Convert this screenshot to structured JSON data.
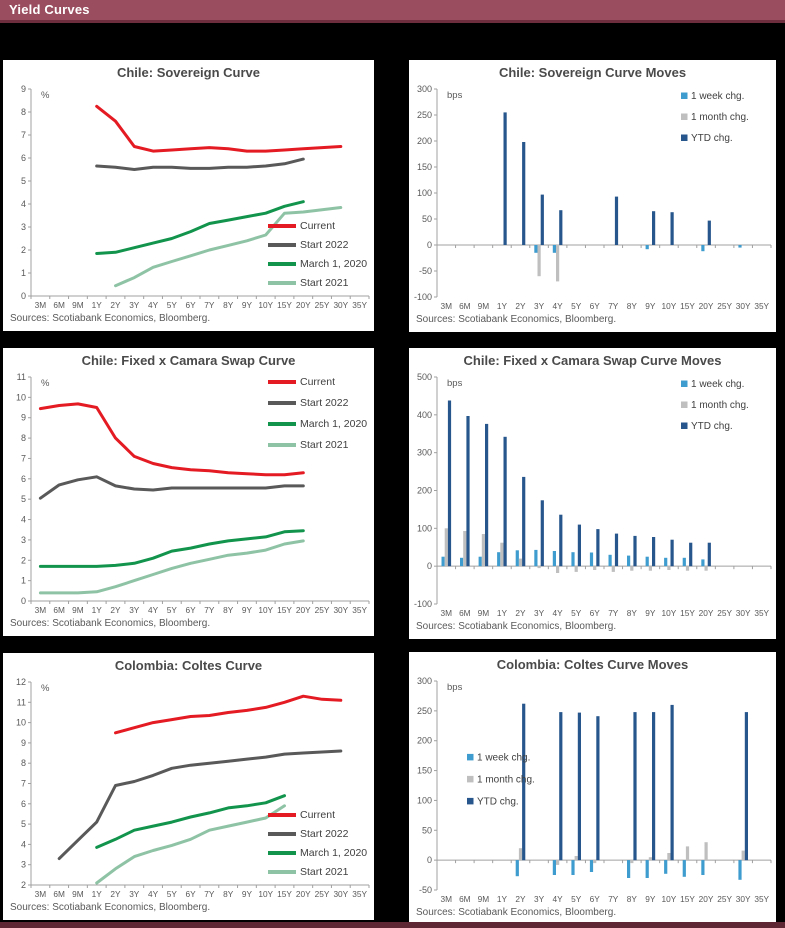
{
  "header": {
    "title": "Yield Curves"
  },
  "colors": {
    "header_bg": "#9a4d5e",
    "header_border": "#6f2e3e",
    "page_bg": "#000000",
    "panel_bg": "#ffffff",
    "axis": "#a0a0a0",
    "tick_text": "#595959",
    "legend_text": "#404040",
    "current_red": "#e41b23",
    "start2022_gray": "#595959",
    "march2020_green": "#12944d",
    "start2021_lightgreen": "#8fc3a5",
    "week_blue": "#3f9cce",
    "month_gray": "#bfbfbf",
    "ytd_navy": "#26568c"
  },
  "chart_data": [
    {
      "type": "line",
      "title": "Chile: Sovereign Curve",
      "unit": "%",
      "ylim": [
        0,
        9
      ],
      "ytick": 1,
      "legend_position": "bottom-right",
      "source": "Sources: Scotiabank Economics, Bloomberg.",
      "categories": [
        "3M",
        "6M",
        "9M",
        "1Y",
        "2Y",
        "3Y",
        "4Y",
        "5Y",
        "6Y",
        "7Y",
        "8Y",
        "9Y",
        "10Y",
        "15Y",
        "20Y",
        "25Y",
        "30Y",
        "35Y"
      ],
      "series": [
        {
          "name": "Current",
          "color": "#e41b23",
          "values": [
            null,
            null,
            null,
            8.25,
            7.6,
            6.5,
            6.3,
            6.35,
            6.4,
            6.45,
            6.4,
            6.3,
            6.3,
            6.35,
            6.4,
            6.45,
            6.5,
            null
          ]
        },
        {
          "name": "Start 2022",
          "color": "#595959",
          "values": [
            null,
            null,
            null,
            5.65,
            5.6,
            5.5,
            5.6,
            5.6,
            5.55,
            5.55,
            5.6,
            5.6,
            5.65,
            5.75,
            5.95,
            null,
            null,
            null
          ]
        },
        {
          "name": "March 1, 2020",
          "color": "#12944d",
          "values": [
            null,
            null,
            null,
            1.85,
            1.9,
            2.1,
            2.3,
            2.5,
            2.8,
            3.15,
            3.3,
            3.45,
            3.6,
            3.9,
            4.1,
            null,
            null,
            null
          ]
        },
        {
          "name": "Start 2021",
          "color": "#8fc3a5",
          "values": [
            null,
            null,
            null,
            null,
            0.45,
            0.8,
            1.25,
            1.5,
            1.75,
            2.0,
            2.2,
            2.4,
            2.65,
            3.6,
            3.65,
            3.75,
            3.85,
            null
          ]
        }
      ]
    },
    {
      "type": "bar",
      "title": "Chile: Sovereign Curve Moves",
      "unit": "bps",
      "ylim": [
        -100,
        300
      ],
      "ytick": 50,
      "legend_position": "top-right",
      "source": "Sources: Scotiabank Economics, Bloomberg.",
      "categories": [
        "3M",
        "6M",
        "9M",
        "1Y",
        "2Y",
        "3Y",
        "4Y",
        "5Y",
        "6Y",
        "7Y",
        "8Y",
        "9Y",
        "10Y",
        "15Y",
        "20Y",
        "25Y",
        "30Y",
        "35Y"
      ],
      "series": [
        {
          "name": "1 week chg.",
          "color": "#3f9cce",
          "values": [
            0,
            0,
            0,
            0,
            0,
            -15,
            -15,
            0,
            0,
            0,
            0,
            -8,
            0,
            0,
            -12,
            0,
            -5,
            0
          ]
        },
        {
          "name": "1 month chg.",
          "color": "#bfbfbf",
          "values": [
            0,
            0,
            0,
            0,
            0,
            -60,
            -70,
            0,
            0,
            0,
            0,
            0,
            0,
            0,
            0,
            0,
            0,
            0
          ]
        },
        {
          "name": "YTD chg.",
          "color": "#26568c",
          "values": [
            0,
            0,
            0,
            255,
            198,
            97,
            67,
            0,
            0,
            93,
            0,
            65,
            63,
            0,
            47,
            0,
            0,
            0
          ]
        }
      ]
    },
    {
      "type": "line",
      "title": "Chile: Fixed x Camara Swap Curve",
      "unit": "%",
      "ylim": [
        0,
        11
      ],
      "ytick": 1,
      "legend_position": "top-right",
      "source": "Sources: Scotiabank Economics, Bloomberg.",
      "categories": [
        "3M",
        "6M",
        "9M",
        "1Y",
        "2Y",
        "3Y",
        "4Y",
        "5Y",
        "6Y",
        "7Y",
        "8Y",
        "9Y",
        "10Y",
        "15Y",
        "20Y",
        "25Y",
        "30Y",
        "35Y"
      ],
      "series": [
        {
          "name": "Current",
          "color": "#e41b23",
          "values": [
            9.45,
            9.6,
            9.68,
            9.5,
            8.0,
            7.1,
            6.75,
            6.55,
            6.45,
            6.4,
            6.3,
            6.25,
            6.2,
            6.2,
            6.3,
            null,
            null,
            null
          ]
        },
        {
          "name": "Start 2022",
          "color": "#595959",
          "values": [
            5.05,
            5.7,
            5.95,
            6.1,
            5.65,
            5.5,
            5.45,
            5.55,
            5.55,
            5.55,
            5.55,
            5.55,
            5.55,
            5.65,
            5.65,
            null,
            null,
            null
          ]
        },
        {
          "name": "March 1, 2020",
          "color": "#12944d",
          "values": [
            1.7,
            1.7,
            1.7,
            1.7,
            1.75,
            1.85,
            2.1,
            2.45,
            2.6,
            2.8,
            2.95,
            3.05,
            3.15,
            3.4,
            3.45,
            null,
            null,
            null
          ]
        },
        {
          "name": "Start 2021",
          "color": "#8fc3a5",
          "values": [
            0.4,
            0.4,
            0.4,
            0.45,
            0.7,
            1.0,
            1.3,
            1.6,
            1.85,
            2.05,
            2.25,
            2.35,
            2.5,
            2.8,
            2.95,
            null,
            null,
            null
          ]
        }
      ]
    },
    {
      "type": "bar",
      "title": "Chile: Fixed x Camara Swap Curve Moves",
      "unit": "bps",
      "ylim": [
        -100,
        500
      ],
      "ytick": 100,
      "legend_position": "top-right",
      "source": "Sources: Scotiabank Economics, Bloomberg.",
      "categories": [
        "3M",
        "6M",
        "9M",
        "1Y",
        "2Y",
        "3Y",
        "4Y",
        "5Y",
        "6Y",
        "7Y",
        "8Y",
        "9Y",
        "10Y",
        "15Y",
        "20Y",
        "25Y",
        "30Y",
        "35Y"
      ],
      "series": [
        {
          "name": "1 week chg.",
          "color": "#3f9cce",
          "values": [
            25,
            22,
            25,
            37,
            42,
            43,
            40,
            37,
            36,
            30,
            28,
            25,
            22,
            22,
            18,
            0,
            0,
            0
          ]
        },
        {
          "name": "1 month chg.",
          "color": "#bfbfbf",
          "values": [
            100,
            93,
            85,
            62,
            20,
            -5,
            -18,
            -15,
            -10,
            -15,
            -12,
            -12,
            -10,
            -12,
            -12,
            0,
            0,
            0
          ]
        },
        {
          "name": "YTD chg.",
          "color": "#26568c",
          "values": [
            438,
            397,
            376,
            342,
            236,
            174,
            136,
            110,
            98,
            86,
            80,
            77,
            70,
            62,
            62,
            0,
            0,
            0
          ]
        }
      ]
    },
    {
      "type": "line",
      "title": "Colombia: Coltes Curve",
      "unit": "%",
      "ylim": [
        2,
        12
      ],
      "ytick": 1,
      "legend_position": "bottom-right",
      "source": "Sources: Scotiabank Economics, Bloomberg.",
      "categories": [
        "3M",
        "6M",
        "9M",
        "1Y",
        "2Y",
        "3Y",
        "4Y",
        "5Y",
        "6Y",
        "7Y",
        "8Y",
        "9Y",
        "10Y",
        "15Y",
        "20Y",
        "25Y",
        "30Y",
        "35Y"
      ],
      "series": [
        {
          "name": "Current",
          "color": "#e41b23",
          "values": [
            null,
            null,
            null,
            null,
            9.5,
            9.75,
            10.0,
            10.15,
            10.3,
            10.35,
            10.5,
            10.6,
            10.75,
            11.0,
            11.3,
            11.15,
            11.1,
            null
          ]
        },
        {
          "name": "Start 2022",
          "color": "#595959",
          "values": [
            null,
            3.3,
            4.2,
            5.1,
            6.9,
            7.1,
            7.4,
            7.75,
            7.9,
            8.0,
            8.1,
            8.2,
            8.3,
            8.45,
            8.5,
            8.55,
            8.6,
            null
          ]
        },
        {
          "name": "March 1, 2020",
          "color": "#12944d",
          "values": [
            null,
            null,
            null,
            3.85,
            4.25,
            4.7,
            4.9,
            5.1,
            5.35,
            5.55,
            5.8,
            5.9,
            6.05,
            6.4,
            null,
            null,
            null,
            null
          ]
        },
        {
          "name": "Start 2021",
          "color": "#8fc3a5",
          "values": [
            null,
            null,
            null,
            2.1,
            2.8,
            3.4,
            3.7,
            3.95,
            4.25,
            4.7,
            4.9,
            5.1,
            5.3,
            5.9,
            null,
            null,
            null,
            null
          ]
        }
      ]
    },
    {
      "type": "bar",
      "title": "Colombia: Coltes Curve Moves",
      "unit": "bps",
      "ylim": [
        -50,
        300
      ],
      "ytick": 50,
      "legend_position": "mid-left",
      "source": "Sources: Scotiabank Economics, Bloomberg.",
      "categories": [
        "3M",
        "6M",
        "9M",
        "1Y",
        "2Y",
        "3Y",
        "4Y",
        "5Y",
        "6Y",
        "7Y",
        "8Y",
        "9Y",
        "10Y",
        "15Y",
        "20Y",
        "25Y",
        "30Y",
        "35Y"
      ],
      "series": [
        {
          "name": "1 week chg.",
          "color": "#3f9cce",
          "values": [
            0,
            0,
            0,
            0,
            -27,
            0,
            -25,
            -25,
            -20,
            0,
            -30,
            -30,
            -23,
            -28,
            -25,
            0,
            -33,
            0
          ]
        },
        {
          "name": "1 month chg.",
          "color": "#bfbfbf",
          "values": [
            0,
            0,
            0,
            0,
            20,
            0,
            -8,
            7,
            -5,
            0,
            -5,
            5,
            12,
            23,
            30,
            0,
            16,
            0
          ]
        },
        {
          "name": "YTD chg.",
          "color": "#26568c",
          "values": [
            0,
            0,
            0,
            0,
            262,
            0,
            248,
            247,
            241,
            0,
            248,
            248,
            260,
            0,
            0,
            0,
            248,
            0
          ]
        }
      ]
    }
  ]
}
